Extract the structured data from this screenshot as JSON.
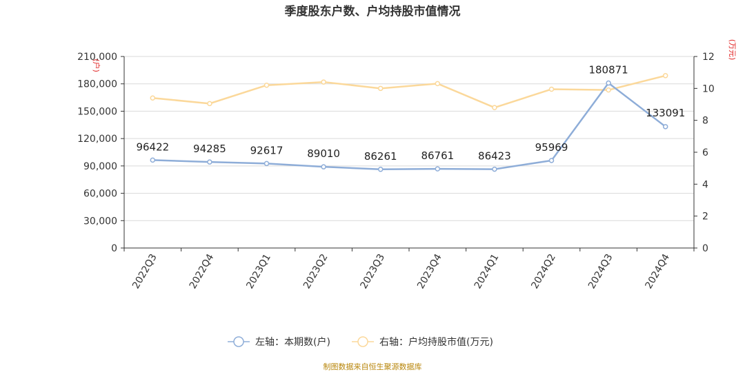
{
  "chart_data": {
    "type": "line",
    "title": "季度股东户数、户均持股市值情况",
    "categories": [
      "2022Q3",
      "2022Q4",
      "2023Q1",
      "2023Q2",
      "2023Q3",
      "2023Q4",
      "2024Q1",
      "2024Q2",
      "2024Q3",
      "2024Q4"
    ],
    "left_axis": {
      "unit": "(户)",
      "ylim": [
        0,
        210000
      ],
      "ticks": [
        0,
        30000,
        60000,
        90000,
        120000,
        150000,
        180000,
        210000
      ],
      "tick_labels": [
        "0",
        "30,000",
        "60,000",
        "90,000",
        "120,000",
        "150,000",
        "180,000",
        "210,000"
      ]
    },
    "right_axis": {
      "unit": "(万元)",
      "ylim": [
        0,
        12
      ],
      "ticks": [
        0,
        2,
        4,
        6,
        8,
        10,
        12
      ],
      "tick_labels": [
        "0",
        "2",
        "4",
        "6",
        "8",
        "10",
        "12"
      ]
    },
    "series": [
      {
        "name": "左轴：本期数(户)",
        "axis": "left",
        "color": "#8eadd8",
        "values": [
          96422,
          94285,
          92617,
          89010,
          86261,
          86761,
          86423,
          95969,
          180871,
          133091
        ],
        "labels": [
          "96422",
          "94285",
          "92617",
          "89010",
          "86261",
          "86761",
          "86423",
          "95969",
          "180871",
          "133091"
        ]
      },
      {
        "name": "右轴：户均持股市值(万元)",
        "axis": "right",
        "color": "#fbd89a",
        "values": [
          9.4,
          9.05,
          10.2,
          10.4,
          10.0,
          10.3,
          8.8,
          9.95,
          9.9,
          10.8
        ]
      }
    ],
    "grid": true,
    "legend_position": "bottom"
  },
  "footer": {
    "source": "制图数据来自恒生聚源数据库"
  }
}
